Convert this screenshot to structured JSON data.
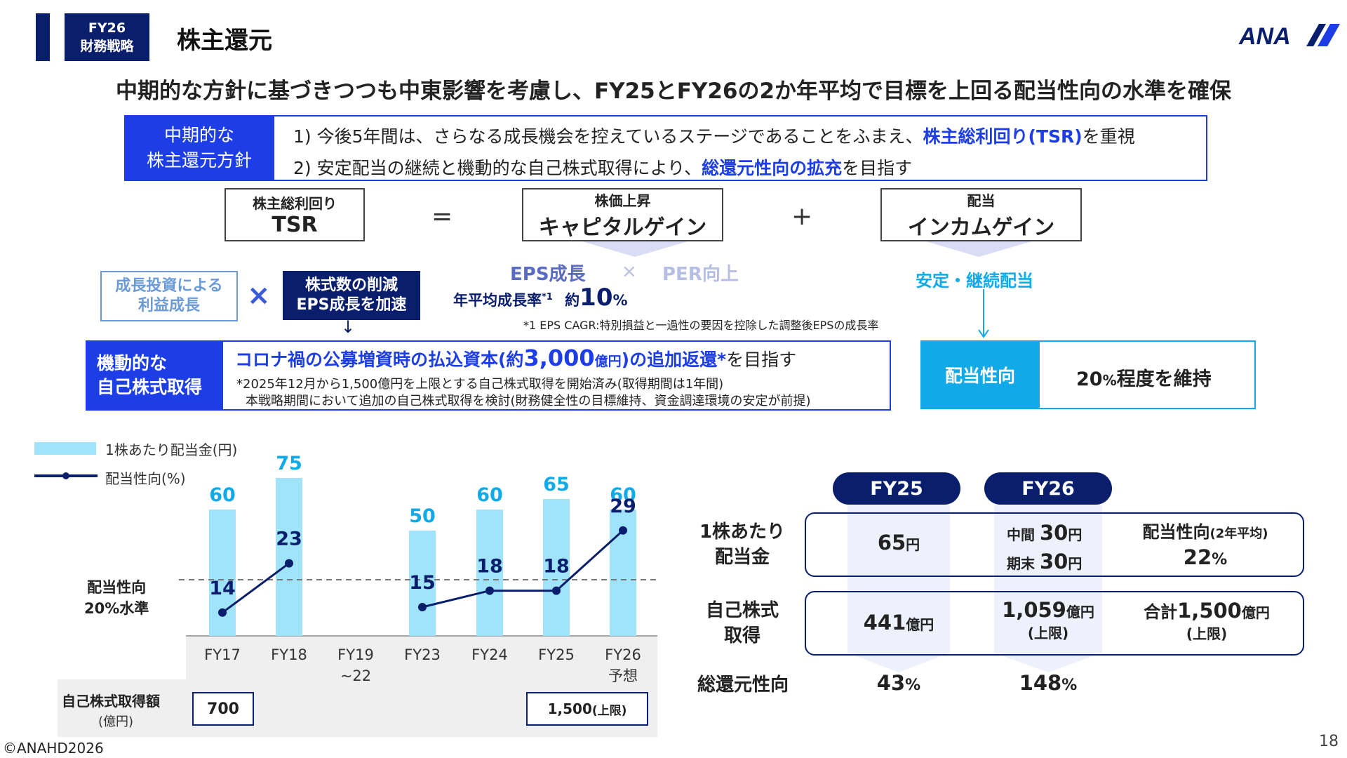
{
  "header": {
    "tag_line1": "FY26",
    "tag_line2": "財務戦略",
    "title": "株主還元",
    "logo_text": "ANA"
  },
  "headline": "中期的な方針に基づきつつも中東影響を考慮し、FY25とFY26の2か年平均で目標を上回る配当性向の水準を確保",
  "policy": {
    "label_line1": "中期的な",
    "label_line2": "株主還元方針",
    "line1_pre": "1) 今後5年間は、さらなる成長機会を控えているステージであることをふまえ、",
    "line1_em": "株主総利回り(TSR)",
    "line1_post": "を重視",
    "line2_pre": "2) 安定配当の継続と機動的な自己株式取得により、",
    "line2_em": "総還元性向の拡充",
    "line2_post": "を目指す"
  },
  "tsr": {
    "box1_small": "株主総利回り",
    "box1_large": "TSR",
    "equals": "=",
    "box2_small": "株価上昇",
    "box2_large": "キャピタルゲイン",
    "plus": "+",
    "box3_small": "配当",
    "box3_large": "インカムゲイン"
  },
  "growth": {
    "eps": "EPS成長",
    "times": "×",
    "per": "PER向上",
    "rate_label": "年平均成長率",
    "rate_sup": "*1",
    "rate_prefix": "約",
    "rate_value": "10",
    "rate_unit": "%",
    "footnote": "*1 EPS CAGR:特別損益と一過性の要因を控除した調整後EPSの成長率",
    "box_left_line1": "成長投資による",
    "box_left_line2": "利益成長",
    "times2": "×",
    "box_right_line1": "株式数の削減",
    "box_right_line2": "EPS成長を加速",
    "arrow": "↓"
  },
  "buyback": {
    "label_line1": "機動的な",
    "label_line2": "自己株式取得",
    "main_pre": "コロナ禍の公募増資時の払込資本(約",
    "main_num": "3,000",
    "main_unit": "億円",
    "main_post": ")の追加返還*",
    "main_tail": "を目指す",
    "note1": "*2025年12月から1,500億円を上限とする自己株式取得を開始済み(取得期間は1年間)",
    "note2": "本戦略期間において追加の自己株式取得を検討(財務健全性の目標維持、資金調達環境の安定が前提)"
  },
  "dividend_policy": {
    "stable": "安定・継続配当",
    "label": "配当性向",
    "value_num": "20",
    "value_unit": "%",
    "value_text": "程度を維持"
  },
  "legend": {
    "bar": "1株あたり配当金(円)",
    "line": "配当性向(%)"
  },
  "threshold": {
    "line1": "配当性向",
    "line2": "20%水準"
  },
  "buyback_row": {
    "label": "自己株式取得額",
    "unit": "(億円)",
    "fy17": "700",
    "fy26": "1,500",
    "fy26_suffix": "(上限)"
  },
  "chart_data": {
    "type": "bar",
    "categories": [
      "FY17",
      "FY18",
      "FY19\n~22",
      "FY23",
      "FY24",
      "FY25",
      "FY26\n予想"
    ],
    "series": [
      {
        "name": "1株あたり配当金(円)",
        "type": "bar",
        "values": [
          60,
          75,
          null,
          50,
          60,
          65,
          60
        ]
      },
      {
        "name": "配当性向(%)",
        "type": "line",
        "values": [
          14,
          23,
          null,
          15,
          18,
          18,
          29
        ]
      }
    ],
    "reference_line": {
      "label": "配当性向 20%水準",
      "value": 20
    },
    "colors": {
      "bar": "#9fe4fa",
      "bar_label": "#11aae8",
      "line": "#0a1e6e"
    }
  },
  "summary": {
    "fy25": "FY25",
    "fy26": "FY26",
    "row1_label_line1": "1株あたり",
    "row1_label_line2": "配当金",
    "row1_fy25_num": "65",
    "row1_fy25_unit": "円",
    "row1_fy26_interim_label": "中間",
    "row1_fy26_interim_num": "30",
    "row1_fy26_interim_unit": "円",
    "row1_fy26_final_label": "期末",
    "row1_fy26_final_num": "30",
    "row1_fy26_final_unit": "円",
    "payout_label": "配当性向",
    "payout_sub": "(2年平均)",
    "payout_num": "22",
    "payout_unit": "%",
    "row2_label_line1": "自己株式",
    "row2_label_line2": "取得",
    "row2_fy25_num": "441",
    "row2_fy25_unit": "億円",
    "row2_fy26_num": "1,059",
    "row2_fy26_unit": "億円",
    "row2_fy26_sub": "(上限)",
    "row2_total_prefix": "合計",
    "row2_total_num": "1,500",
    "row2_total_unit": "億円",
    "row2_total_sub": "(上限)",
    "row3_label": "総還元性向",
    "row3_fy25_num": "43",
    "row3_fy25_unit": "%",
    "row3_fy26_num": "148",
    "row3_fy26_unit": "%"
  },
  "footer": {
    "copyright": "©ANAHD2026",
    "page": "18"
  },
  "colors": {
    "navy": "#0a1e6e",
    "blue": "#1d3ee6",
    "cyan": "#11aae8",
    "light_cyan": "#9fe4fa"
  }
}
